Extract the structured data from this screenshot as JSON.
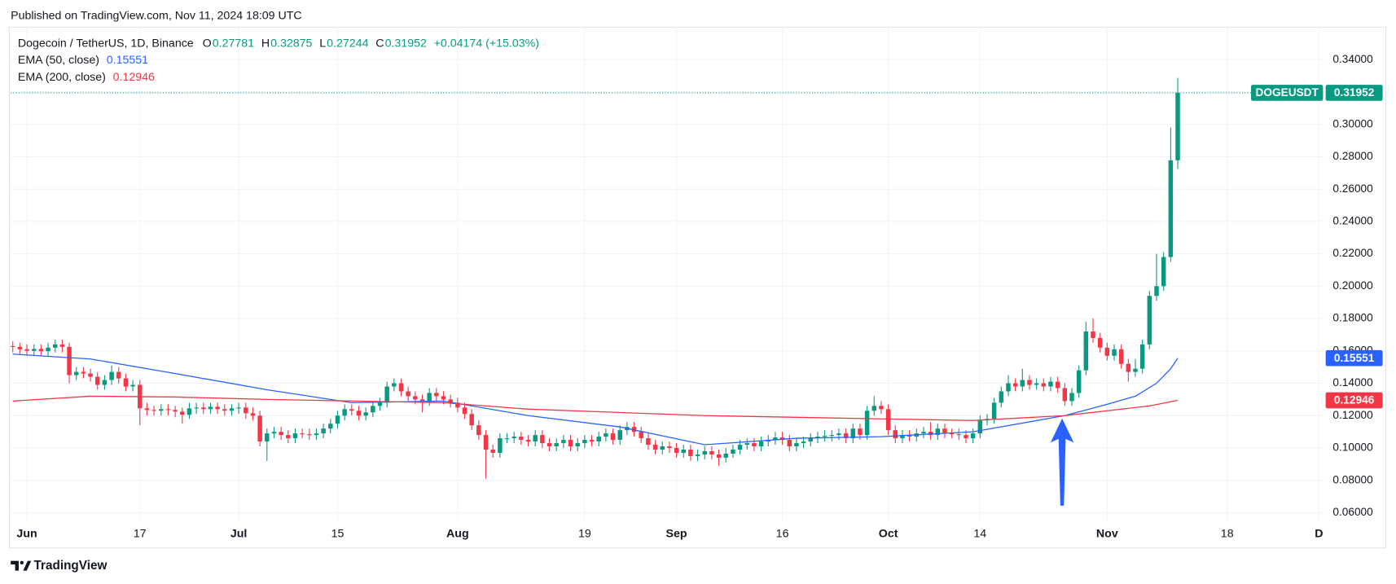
{
  "header": "Published on TradingView.com, Nov 11, 2024 18:09 UTC",
  "brand": "TradingView",
  "chart_data": {
    "type": "candlestick",
    "title": "Dogecoin / TetherUS, 1D, Binance",
    "symbol": "DOGEUSDT",
    "ohlc_labels": [
      "O",
      "H",
      "L",
      "C"
    ],
    "change": "+0.04174 (+15.03%)",
    "up_color": "#089981",
    "down_color": "#f23645",
    "x": [
      -2,
      -1,
      0,
      1,
      2,
      3,
      4,
      5,
      6,
      7,
      8,
      9,
      10,
      11,
      12,
      13,
      14,
      15,
      16,
      17,
      18,
      19,
      20,
      21,
      22,
      23,
      24,
      25,
      26,
      27,
      28,
      29,
      30,
      31,
      32,
      33,
      34,
      35,
      36,
      37,
      38,
      39,
      40,
      41,
      42,
      43,
      44,
      45,
      46,
      47,
      48,
      49,
      50,
      51,
      52,
      53,
      54,
      55,
      56,
      57,
      58,
      59,
      60,
      61,
      62,
      63,
      64,
      65,
      66,
      67,
      68,
      69,
      70,
      71,
      72,
      73,
      74,
      75,
      76,
      77,
      78,
      79,
      80,
      81,
      82,
      83,
      84,
      85,
      86,
      87,
      88,
      89,
      90,
      91,
      92,
      93,
      94,
      95,
      96,
      97,
      98,
      99,
      100,
      101,
      102,
      103,
      104,
      105,
      106,
      107,
      108,
      109,
      110,
      111,
      112,
      113,
      114,
      115,
      116,
      117,
      118,
      119,
      120,
      121,
      122,
      123,
      124,
      125,
      126,
      127,
      128,
      129,
      130,
      131,
      132,
      133,
      134,
      135,
      136,
      137,
      138,
      139,
      140,
      141,
      142,
      143,
      144,
      145,
      146,
      147,
      148,
      149,
      150,
      151,
      152,
      153,
      154,
      155,
      156,
      157,
      158,
      159,
      160,
      161,
      162,
      163
    ],
    "open": [
      0.163,
      0.1625,
      0.161,
      0.16,
      0.1612,
      0.1598,
      0.162,
      0.164,
      0.1625,
      0.145,
      0.147,
      0.146,
      0.144,
      0.139,
      0.142,
      0.147,
      0.143,
      0.138,
      0.139,
      0.1245,
      0.1235,
      0.123,
      0.124,
      0.1235,
      0.1225,
      0.1205,
      0.1245,
      0.125,
      0.124,
      0.1255,
      0.124,
      0.123,
      0.1245,
      0.125,
      0.1215,
      0.12,
      0.104,
      0.109,
      0.11,
      0.108,
      0.106,
      0.109,
      0.1085,
      0.108,
      0.109,
      0.112,
      0.115,
      0.12,
      0.124,
      0.123,
      0.12,
      0.122,
      0.126,
      0.128,
      0.138,
      0.14,
      0.135,
      0.132,
      0.13,
      0.129,
      0.134,
      0.132,
      0.13,
      0.128,
      0.125,
      0.121,
      0.114,
      0.108,
      0.099,
      0.097,
      0.106,
      0.106,
      0.107,
      0.105,
      0.104,
      0.108,
      0.103,
      0.101,
      0.103,
      0.105,
      0.101,
      0.103,
      0.105,
      0.104,
      0.107,
      0.109,
      0.105,
      0.111,
      0.113,
      0.11,
      0.106,
      0.102,
      0.099,
      0.101,
      0.1,
      0.097,
      0.099,
      0.095,
      0.096,
      0.098,
      0.096,
      0.094,
      0.0965,
      0.099,
      0.102,
      0.103,
      0.101,
      0.104,
      0.105,
      0.1065,
      0.105,
      0.101,
      0.103,
      0.104,
      0.106,
      0.107,
      0.1075,
      0.108,
      0.109,
      0.106,
      0.112,
      0.108,
      0.123,
      0.126,
      0.124,
      0.111,
      0.106,
      0.108,
      0.107,
      0.109,
      0.11,
      0.108,
      0.112,
      0.109,
      0.1085,
      0.108,
      0.106,
      0.109,
      0.117,
      0.118,
      0.128,
      0.135,
      0.14,
      0.138,
      0.142,
      0.139,
      0.14,
      0.138,
      0.141,
      0.137,
      0.129,
      0.134,
      0.148,
      0.172,
      0.168,
      0.162,
      0.157,
      0.161,
      0.152,
      0.147,
      0.149,
      0.164,
      0.194,
      0.2,
      0.218,
      0.27781
    ],
    "high": [
      0.166,
      0.165,
      0.164,
      0.164,
      0.164,
      0.165,
      0.167,
      0.167,
      0.165,
      0.15,
      0.15,
      0.149,
      0.147,
      0.145,
      0.151,
      0.15,
      0.146,
      0.142,
      0.142,
      0.128,
      0.126,
      0.127,
      0.127,
      0.126,
      0.125,
      0.128,
      0.128,
      0.128,
      0.128,
      0.128,
      0.127,
      0.127,
      0.128,
      0.128,
      0.125,
      0.123,
      0.112,
      0.113,
      0.113,
      0.111,
      0.112,
      0.112,
      0.112,
      0.112,
      0.115,
      0.118,
      0.123,
      0.127,
      0.127,
      0.126,
      0.125,
      0.129,
      0.131,
      0.141,
      0.143,
      0.143,
      0.138,
      0.135,
      0.133,
      0.137,
      0.137,
      0.135,
      0.133,
      0.131,
      0.128,
      0.124,
      0.117,
      0.111,
      0.102,
      0.109,
      0.109,
      0.11,
      0.11,
      0.108,
      0.111,
      0.111,
      0.106,
      0.106,
      0.108,
      0.108,
      0.106,
      0.108,
      0.108,
      0.11,
      0.112,
      0.112,
      0.114,
      0.116,
      0.116,
      0.113,
      0.109,
      0.105,
      0.104,
      0.104,
      0.103,
      0.102,
      0.102,
      0.099,
      0.101,
      0.101,
      0.099,
      0.1,
      0.102,
      0.105,
      0.106,
      0.106,
      0.107,
      0.108,
      0.11,
      0.11,
      0.108,
      0.106,
      0.107,
      0.109,
      0.11,
      0.111,
      0.111,
      0.112,
      0.112,
      0.115,
      0.115,
      0.126,
      0.132,
      0.129,
      0.127,
      0.114,
      0.111,
      0.111,
      0.112,
      0.113,
      0.116,
      0.115,
      0.115,
      0.112,
      0.112,
      0.111,
      0.112,
      0.12,
      0.121,
      0.131,
      0.138,
      0.145,
      0.143,
      0.149,
      0.145,
      0.143,
      0.143,
      0.144,
      0.144,
      0.14,
      0.137,
      0.151,
      0.178,
      0.18,
      0.171,
      0.165,
      0.164,
      0.164,
      0.155,
      0.155,
      0.167,
      0.197,
      0.22,
      0.221,
      0.298,
      0.32875
    ],
    "low": [
      0.159,
      0.158,
      0.157,
      0.157,
      0.157,
      0.157,
      0.159,
      0.159,
      0.14,
      0.142,
      0.143,
      0.141,
      0.136,
      0.136,
      0.139,
      0.14,
      0.135,
      0.135,
      0.114,
      0.12,
      0.12,
      0.12,
      0.12,
      0.119,
      0.115,
      0.118,
      0.121,
      0.121,
      0.121,
      0.121,
      0.12,
      0.12,
      0.121,
      0.118,
      0.117,
      0.101,
      0.092,
      0.106,
      0.105,
      0.103,
      0.103,
      0.106,
      0.105,
      0.105,
      0.106,
      0.109,
      0.112,
      0.117,
      0.12,
      0.117,
      0.117,
      0.119,
      0.123,
      0.125,
      0.135,
      0.132,
      0.129,
      0.127,
      0.122,
      0.126,
      0.129,
      0.127,
      0.125,
      0.122,
      0.118,
      0.111,
      0.105,
      0.081,
      0.094,
      0.094,
      0.103,
      0.103,
      0.102,
      0.101,
      0.101,
      0.1,
      0.098,
      0.098,
      0.1,
      0.098,
      0.098,
      0.1,
      0.101,
      0.101,
      0.104,
      0.102,
      0.102,
      0.108,
      0.107,
      0.103,
      0.099,
      0.096,
      0.096,
      0.097,
      0.094,
      0.094,
      0.092,
      0.092,
      0.093,
      0.093,
      0.089,
      0.091,
      0.094,
      0.096,
      0.099,
      0.098,
      0.098,
      0.101,
      0.102,
      0.102,
      0.098,
      0.098,
      0.1,
      0.101,
      0.103,
      0.104,
      0.104,
      0.105,
      0.103,
      0.103,
      0.105,
      0.105,
      0.12,
      0.121,
      0.108,
      0.103,
      0.103,
      0.104,
      0.104,
      0.106,
      0.105,
      0.105,
      0.106,
      0.106,
      0.105,
      0.103,
      0.103,
      0.106,
      0.114,
      0.115,
      0.125,
      0.132,
      0.135,
      0.135,
      0.136,
      0.136,
      0.135,
      0.135,
      0.134,
      0.126,
      0.126,
      0.131,
      0.145,
      0.165,
      0.159,
      0.154,
      0.154,
      0.149,
      0.141,
      0.144,
      0.146,
      0.161,
      0.191,
      0.197,
      0.215,
      0.27244
    ],
    "close": [
      0.1625,
      0.161,
      0.16,
      0.1612,
      0.1598,
      0.162,
      0.164,
      0.1625,
      0.145,
      0.147,
      0.146,
      0.144,
      0.139,
      0.142,
      0.147,
      0.143,
      0.138,
      0.139,
      0.1245,
      0.1235,
      0.123,
      0.124,
      0.1235,
      0.1225,
      0.1205,
      0.1245,
      0.125,
      0.124,
      0.1255,
      0.124,
      0.123,
      0.1245,
      0.125,
      0.1215,
      0.12,
      0.104,
      0.109,
      0.11,
      0.108,
      0.106,
      0.109,
      0.1085,
      0.108,
      0.109,
      0.112,
      0.115,
      0.12,
      0.124,
      0.123,
      0.12,
      0.122,
      0.126,
      0.128,
      0.138,
      0.14,
      0.135,
      0.132,
      0.13,
      0.129,
      0.134,
      0.132,
      0.13,
      0.128,
      0.125,
      0.121,
      0.114,
      0.108,
      0.099,
      0.097,
      0.106,
      0.106,
      0.107,
      0.105,
      0.104,
      0.108,
      0.103,
      0.101,
      0.103,
      0.105,
      0.101,
      0.103,
      0.105,
      0.104,
      0.107,
      0.109,
      0.105,
      0.111,
      0.113,
      0.11,
      0.106,
      0.102,
      0.099,
      0.101,
      0.1,
      0.097,
      0.099,
      0.095,
      0.096,
      0.098,
      0.096,
      0.094,
      0.0965,
      0.099,
      0.102,
      0.103,
      0.101,
      0.104,
      0.105,
      0.1065,
      0.105,
      0.101,
      0.103,
      0.104,
      0.106,
      0.107,
      0.1075,
      0.108,
      0.109,
      0.106,
      0.112,
      0.108,
      0.123,
      0.126,
      0.124,
      0.111,
      0.106,
      0.108,
      0.107,
      0.109,
      0.11,
      0.108,
      0.112,
      0.109,
      0.1085,
      0.108,
      0.106,
      0.109,
      0.117,
      0.118,
      0.128,
      0.135,
      0.14,
      0.138,
      0.142,
      0.139,
      0.14,
      0.138,
      0.141,
      0.137,
      0.129,
      0.134,
      0.148,
      0.172,
      0.168,
      0.162,
      0.157,
      0.161,
      0.152,
      0.147,
      0.149,
      0.164,
      0.194,
      0.2,
      0.218,
      0.27778,
      0.31952
    ],
    "series": [
      {
        "name": "EMA (50, close)",
        "color": "#2962ff",
        "x": [
          -2,
          9,
          21,
          34,
          46,
          59,
          71,
          84,
          96,
          109,
          121,
          134,
          147,
          153,
          157,
          160,
          162,
          163
        ],
        "values": [
          0.158,
          0.155,
          0.146,
          0.136,
          0.128,
          0.129,
          0.12,
          0.113,
          0.102,
          0.106,
          0.107,
          0.11,
          0.12,
          0.127,
          0.132,
          0.14,
          0.149,
          0.15551
        ]
      },
      {
        "name": "EMA (200, close)",
        "color": "#f23645",
        "x": [
          -2,
          9,
          21,
          34,
          59,
          71,
          96,
          121,
          134,
          147,
          159,
          163
        ],
        "values": [
          0.129,
          0.132,
          0.1315,
          0.13,
          0.128,
          0.124,
          0.12,
          0.118,
          0.117,
          0.12,
          0.126,
          0.12946
        ]
      }
    ],
    "xlim": [
      -2.3,
      183.7
    ],
    "ylim": [
      0.055,
      0.3576
    ],
    "xticks": [
      {
        "value": 0,
        "label": "Jun"
      },
      {
        "value": 16,
        "label": "17"
      },
      {
        "value": 30,
        "label": "Jul"
      },
      {
        "value": 44,
        "label": "15"
      },
      {
        "value": 61,
        "label": "Aug"
      },
      {
        "value": 79,
        "label": "19"
      },
      {
        "value": 92,
        "label": "Sep"
      },
      {
        "value": 107,
        "label": "16"
      },
      {
        "value": 122,
        "label": "Oct"
      },
      {
        "value": 135,
        "label": "14"
      },
      {
        "value": 153,
        "label": "Nov"
      },
      {
        "value": 170,
        "label": "18"
      },
      {
        "value": 183,
        "label": "D"
      }
    ],
    "yticks": [
      {
        "value": 0.06,
        "label": "0.06000"
      },
      {
        "value": 0.08,
        "label": "0.08000"
      },
      {
        "value": 0.1,
        "label": "0.10000"
      },
      {
        "value": 0.12,
        "label": "0.12000"
      },
      {
        "value": 0.14,
        "label": "0.14000"
      },
      {
        "value": 0.16,
        "label": "0.16000"
      },
      {
        "value": 0.18,
        "label": "0.18000"
      },
      {
        "value": 0.2,
        "label": "0.20000"
      },
      {
        "value": 0.22,
        "label": "0.22000"
      },
      {
        "value": 0.24,
        "label": "0.24000"
      },
      {
        "value": 0.26,
        "label": "0.26000"
      },
      {
        "value": 0.28,
        "label": "0.28000"
      },
      {
        "value": 0.3,
        "label": "0.30000"
      },
      {
        "value": 0.32,
        "label": "0.32000"
      },
      {
        "value": 0.34,
        "label": "0.34000"
      }
    ],
    "grid": true
  }
}
